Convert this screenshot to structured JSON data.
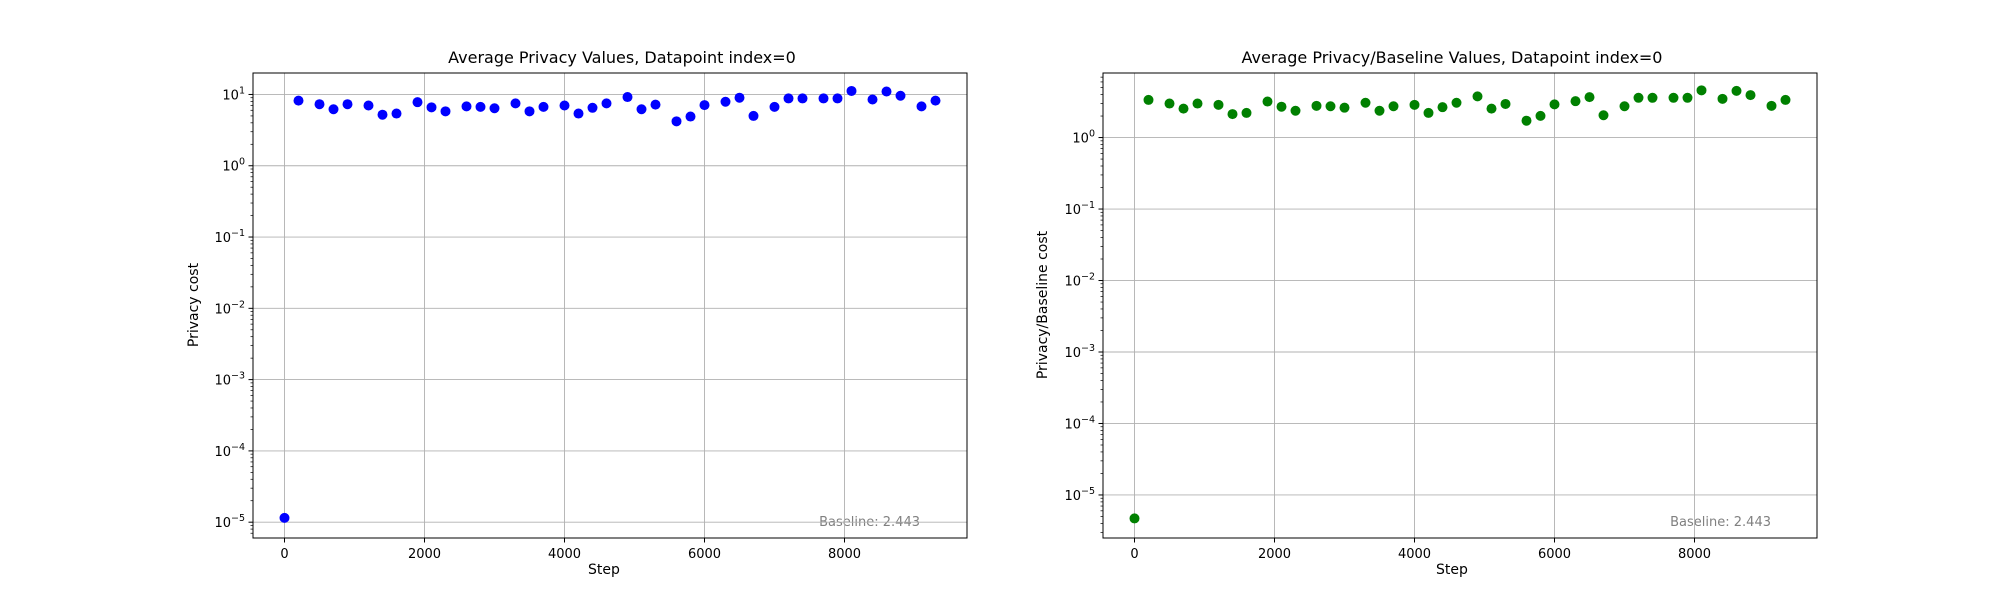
{
  "chart_data": [
    {
      "type": "scatter",
      "title": "Average Privacy Values, Datapoint index=0",
      "xlabel": "Step",
      "ylabel": "Privacy cost",
      "yscale": "log",
      "xlim": [
        -450,
        9750
      ],
      "ylim": [
        6e-06,
        20
      ],
      "xticks": [
        0,
        2000,
        4000,
        6000,
        8000
      ],
      "xtick_labels": [
        "0",
        "2000",
        "4000",
        "6000",
        "8000"
      ],
      "yticks": [
        1e-05,
        0.0001,
        0.001,
        0.01,
        0.1,
        1,
        10
      ],
      "ytick_labels": [
        {
          "base": "10",
          "exp": "−5"
        },
        {
          "base": "10",
          "exp": "−4"
        },
        {
          "base": "10",
          "exp": "−3"
        },
        {
          "base": "10",
          "exp": "−2"
        },
        {
          "base": "10",
          "exp": "−1"
        },
        {
          "base": "10",
          "exp": "0"
        },
        {
          "base": "10",
          "exp": "1"
        }
      ],
      "grid": true,
      "color": "#0000ff",
      "annotation": "Baseline: 2.443",
      "x": [
        0,
        200,
        500,
        700,
        900,
        1200,
        1400,
        1600,
        1900,
        2100,
        2300,
        2600,
        2800,
        3000,
        3300,
        3500,
        3700,
        4000,
        4200,
        4400,
        4600,
        4900,
        5100,
        5300,
        5600,
        5800,
        6000,
        6300,
        6500,
        6700,
        7000,
        7200,
        7400,
        7700,
        7900,
        8100,
        8400,
        8600,
        8800,
        9100,
        9300
      ],
      "y": [
        1.15e-05,
        8.2,
        7.3,
        6.2,
        7.3,
        7.0,
        5.2,
        5.4,
        7.8,
        6.6,
        5.8,
        6.8,
        6.7,
        6.4,
        7.5,
        5.8,
        6.7,
        7.0,
        5.4,
        6.5,
        7.5,
        9.2,
        6.2,
        7.2,
        4.2,
        4.9,
        7.1,
        7.9,
        9.0,
        5.0,
        6.7,
        8.8,
        8.8,
        8.8,
        8.8,
        11.2,
        8.5,
        11.0,
        9.6,
        6.8,
        8.2
      ]
    },
    {
      "type": "scatter",
      "title": "Average Privacy/Baseline Values, Datapoint index=0",
      "xlabel": "Step",
      "ylabel": "Privacy/Baseline cost",
      "yscale": "log",
      "xlim": [
        -450,
        9750
      ],
      "ylim": [
        2.5e-06,
        8
      ],
      "xticks": [
        0,
        2000,
        4000,
        6000,
        8000
      ],
      "xtick_labels": [
        "0",
        "2000",
        "4000",
        "6000",
        "8000"
      ],
      "yticks": [
        1e-05,
        0.0001,
        0.001,
        0.01,
        0.1,
        1
      ],
      "ytick_labels": [
        {
          "base": "10",
          "exp": "−5"
        },
        {
          "base": "10",
          "exp": "−4"
        },
        {
          "base": "10",
          "exp": "−3"
        },
        {
          "base": "10",
          "exp": "−2"
        },
        {
          "base": "10",
          "exp": "−1"
        },
        {
          "base": "10",
          "exp": "0"
        }
      ],
      "grid": true,
      "color": "#008000",
      "annotation": "Baseline: 2.443",
      "x": [
        0,
        200,
        500,
        700,
        900,
        1200,
        1400,
        1600,
        1900,
        2100,
        2300,
        2600,
        2800,
        3000,
        3300,
        3500,
        3700,
        4000,
        4200,
        4400,
        4600,
        4900,
        5100,
        5300,
        5600,
        5800,
        6000,
        6300,
        6500,
        6700,
        7000,
        7200,
        7400,
        7700,
        7900,
        8100,
        8400,
        8600,
        8800,
        9100,
        9300
      ],
      "y": [
        4.7e-06,
        3.36,
        2.99,
        2.54,
        2.99,
        2.87,
        2.13,
        2.21,
        3.19,
        2.7,
        2.37,
        2.78,
        2.74,
        2.62,
        3.07,
        2.37,
        2.74,
        2.87,
        2.21,
        2.66,
        3.07,
        3.77,
        2.54,
        2.95,
        1.72,
        2.01,
        2.91,
        3.23,
        3.68,
        2.05,
        2.74,
        3.6,
        3.6,
        3.6,
        3.6,
        4.58,
        3.48,
        4.5,
        3.93,
        2.78,
        3.36
      ]
    }
  ]
}
